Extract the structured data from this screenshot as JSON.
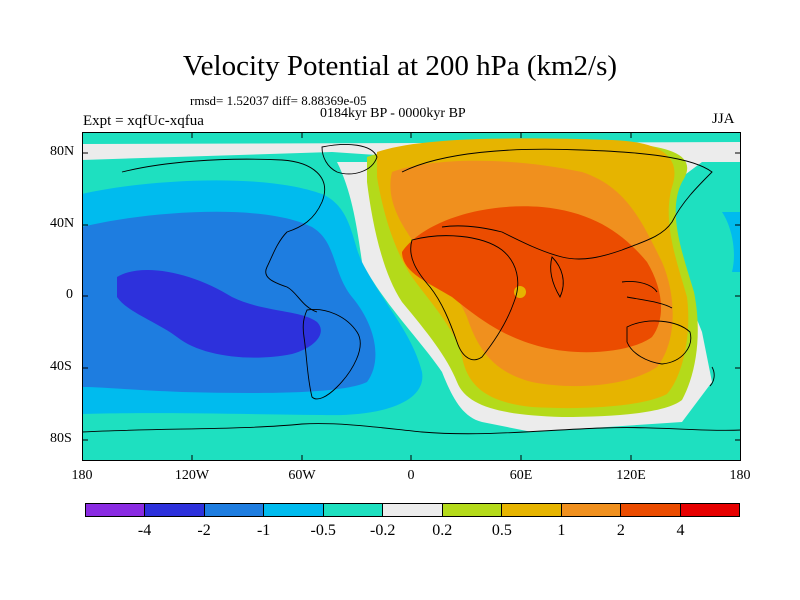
{
  "title": "Velocity Potential at 200 hPa (km2/s)",
  "stats": "rmsd= 1.52037 diff= 8.88369e-05",
  "period": "0184kyr BP - 0000kyr BP",
  "experiment": "Expt = xqfUc-xqfua",
  "season": "JJA",
  "y_axis_labels": [
    "80N",
    "40N",
    "0",
    "40S",
    "80S"
  ],
  "x_axis_labels": [
    "180",
    "120W",
    "60W",
    "0",
    "60E",
    "120E",
    "180"
  ],
  "colorbar": {
    "colors": [
      "#8a2be2",
      "#2d31dc",
      "#1e7de0",
      "#00bbee",
      "#1ee0c0",
      "#ececec",
      "#b4da1a",
      "#e6b400",
      "#f0901e",
      "#eb4c00",
      "#e60000"
    ],
    "labels": [
      "-4",
      "-2",
      "-1",
      "-0.5",
      "-0.2",
      "0.2",
      "0.5",
      "1",
      "2",
      "4"
    ]
  }
}
